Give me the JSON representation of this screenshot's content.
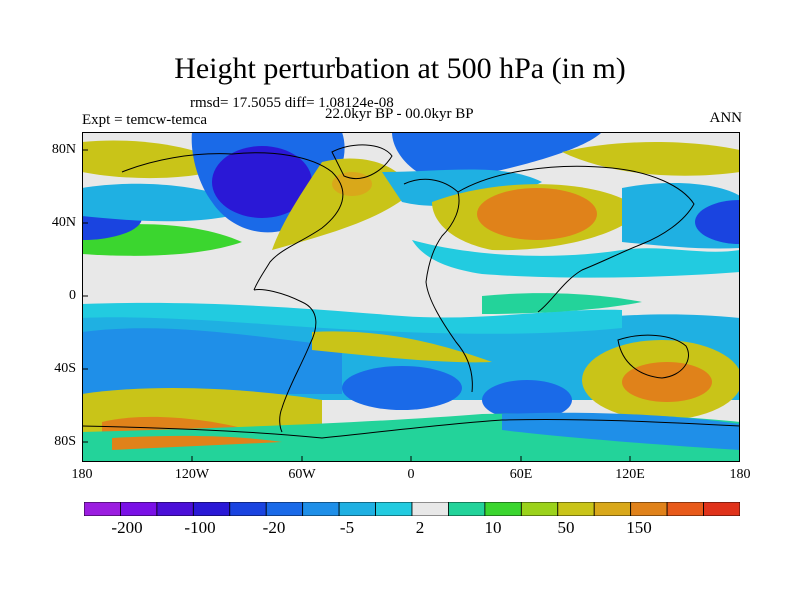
{
  "title": "Height perturbation at 500 hPa (in m)",
  "stats": "rmsd= 17.5055 diff= 1.08124e-08",
  "period": "22.0kyr BP - 00.0kyr BP",
  "experiment": "Expt = temcw-temca",
  "season": "ANN",
  "lat_ticks": [
    "80N",
    "40N",
    "0",
    "40S",
    "80S"
  ],
  "lon_ticks": [
    "180",
    "120W",
    "60W",
    "0",
    "60E",
    "120E",
    "180"
  ],
  "colorbar": {
    "labels": [
      "-200",
      "-100",
      "-20",
      "-5",
      "2",
      "10",
      "50",
      "150"
    ],
    "colors": [
      "#9b1de0",
      "#7a10e6",
      "#4b0fd8",
      "#2a18d6",
      "#1a44e0",
      "#1a6ae8",
      "#1f8fe8",
      "#1fb0e2",
      "#22cbe0",
      "#e8e8e8",
      "#23d39a",
      "#3bd62f",
      "#9bd21b",
      "#c9c418",
      "#d9a81a",
      "#e0821a",
      "#e85a1a",
      "#e0321a"
    ]
  }
}
